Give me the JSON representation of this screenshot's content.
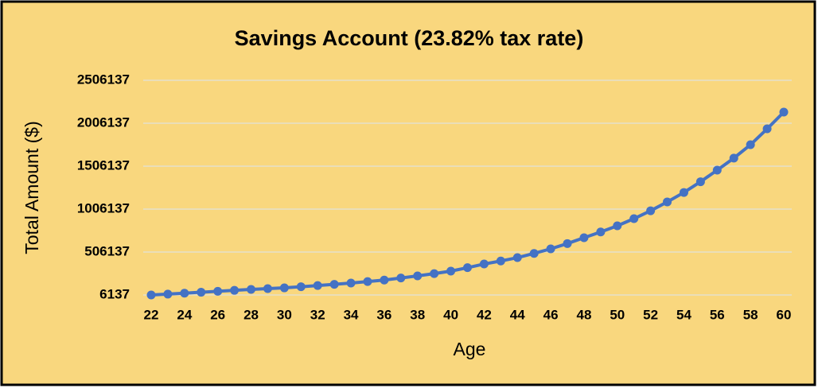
{
  "chart_data": {
    "type": "line",
    "title": "Savings Account (23.82% tax rate)",
    "x_label": "Age",
    "y_label": "Total Amount ($)",
    "x": [
      22,
      23,
      24,
      25,
      26,
      27,
      28,
      29,
      30,
      31,
      32,
      33,
      34,
      35,
      36,
      37,
      38,
      39,
      40,
      41,
      42,
      43,
      44,
      45,
      46,
      47,
      48,
      49,
      50,
      51,
      52,
      53,
      54,
      55,
      56,
      57,
      58,
      59,
      60
    ],
    "series": [
      {
        "name": "Total Amount",
        "color": "#4472c4",
        "values": [
          6137,
          16000,
          27000,
          38000,
          49000,
          60000,
          71000,
          80000,
          89000,
          102000,
          116000,
          130000,
          145000,
          162000,
          180000,
          204000,
          228000,
          255000,
          284000,
          324000,
          367000,
          402000,
          441000,
          490000,
          543000,
          605000,
          673000,
          740000,
          812000,
          895000,
          987000,
          1090000,
          1200000,
          1325000,
          1460000,
          1600000,
          1756000,
          1941000,
          2136000
        ]
      }
    ],
    "xlim": [
      22,
      60
    ],
    "xticks": [
      22,
      24,
      26,
      28,
      30,
      32,
      34,
      36,
      38,
      40,
      42,
      44,
      46,
      48,
      50,
      52,
      54,
      56,
      58,
      60
    ],
    "ylim": [
      6137,
      2506137
    ],
    "yticks": [
      6137,
      506137,
      1006137,
      1506137,
      2006137,
      2506137
    ],
    "grid": true
  }
}
